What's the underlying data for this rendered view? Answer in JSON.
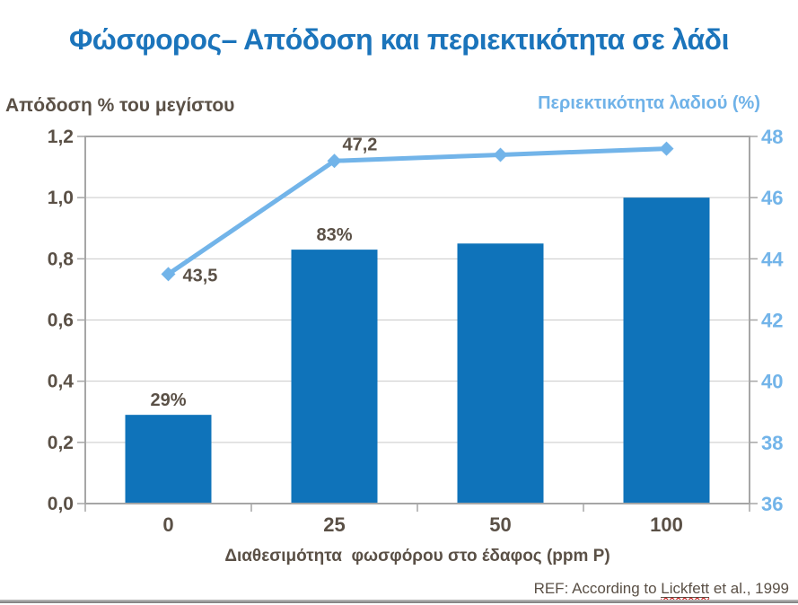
{
  "page": {
    "title": "Φώσφορος– Απόδοση και περιεκτικότητα σε λάδι",
    "ref": {
      "prefix": "REF: According to ",
      "link": "Lickfett",
      "suffix": " et al., 1999"
    }
  },
  "colors": {
    "title_blue": "#1B74BB",
    "bar_blue": "#0F73BA",
    "line_blue": "#72B4E9",
    "label_brown": "#5A5046",
    "axis_gray": "#A6A6A6",
    "grid_gray": "#C9C9C9",
    "footer_gray": "#8C8C8C",
    "spellcheck_red": "#CC0000"
  },
  "chart_data": {
    "type": "bar",
    "title": "Φώσφορος– Απόδοση και περιεκτικότητα σε λάδι",
    "categories": [
      "0",
      "25",
      "50",
      "100"
    ],
    "xlabel": "Διαθεσιμότητα  φωσφόρου στο έδαφος (ppm P)",
    "grid": "horizontal",
    "legend": "none",
    "left_axis": {
      "label": "Απόδοση % του μεγίστου",
      "min": 0.0,
      "max": 1.2,
      "step": 0.2,
      "tick_labels": [
        "1,2",
        "1,0",
        "0,8",
        "0,6",
        "0,4",
        "0,2",
        "0,0"
      ]
    },
    "right_axis": {
      "label": "Περιεκτικότητα λαδιού (%)",
      "min": 36,
      "max": 48,
      "step": 2,
      "tick_labels": [
        "48",
        "46",
        "44",
        "42",
        "40",
        "38",
        "36"
      ]
    },
    "series": [
      {
        "name": "Απόδοση % του μεγίστου",
        "type": "bar",
        "axis": "left",
        "values": [
          0.29,
          0.83,
          0.85,
          1.0
        ],
        "point_labels": [
          "29%",
          "83%",
          "",
          ""
        ]
      },
      {
        "name": "Περιεκτικότητα λαδιού (%)",
        "type": "line",
        "axis": "right",
        "values": [
          43.5,
          47.2,
          47.4,
          47.6
        ],
        "point_labels": [
          "43,5",
          "47,2",
          "",
          ""
        ]
      }
    ]
  }
}
